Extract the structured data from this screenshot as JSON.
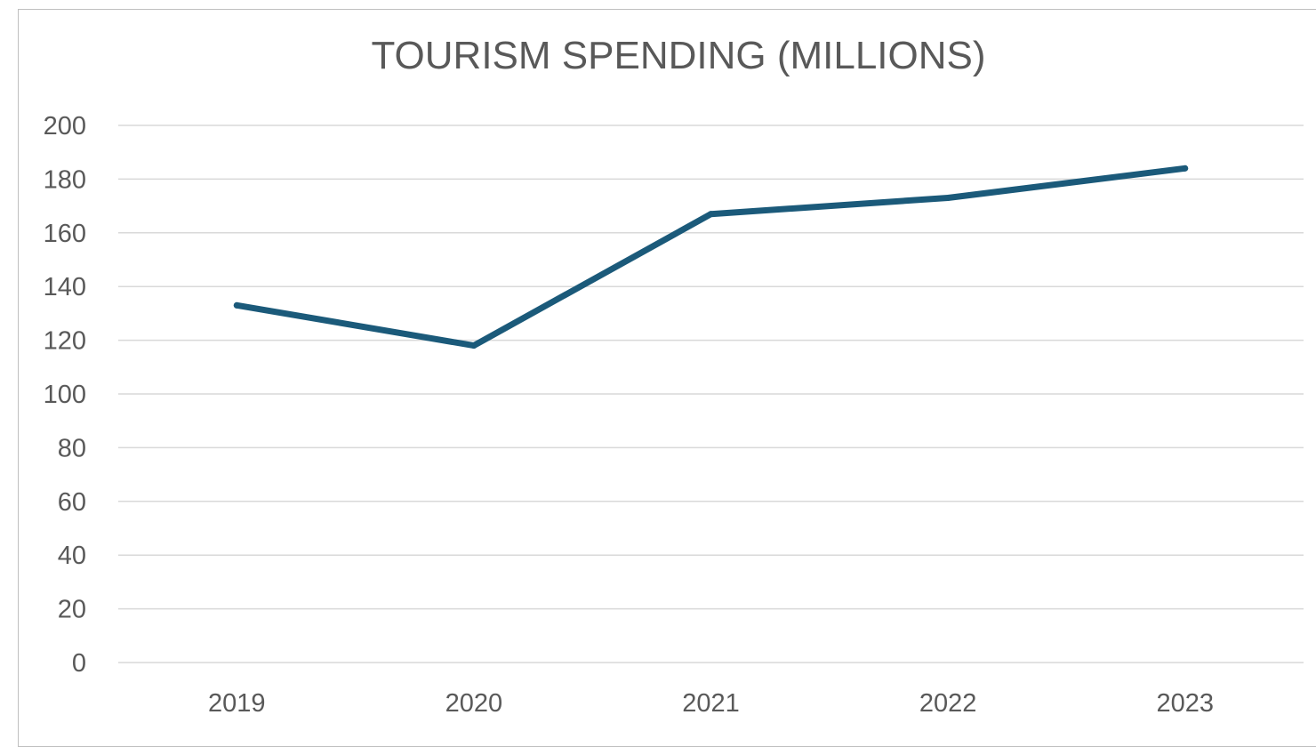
{
  "chart_data": {
    "type": "line",
    "title": "TOURISM SPENDING (MILLIONS)",
    "xlabel": "",
    "ylabel": "",
    "categories": [
      "2019",
      "2020",
      "2021",
      "2022",
      "2023"
    ],
    "series": [
      {
        "values": [
          133,
          118,
          167,
          173,
          184
        ],
        "color": "#1b5a7a"
      }
    ],
    "ylim": [
      0,
      200
    ],
    "yticks": [
      "0",
      "20",
      "40",
      "60",
      "80",
      "100",
      "120",
      "140",
      "160",
      "180",
      "200"
    ],
    "grid": true,
    "legend": "none"
  }
}
